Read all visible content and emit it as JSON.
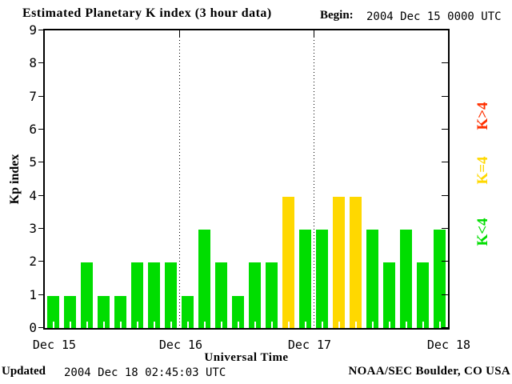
{
  "header": {
    "title": "Estimated Planetary K index (3 hour data)",
    "begin_label": "Begin:",
    "begin_value": "2004 Dec 15 0000 UTC"
  },
  "chart_data": {
    "type": "bar",
    "title": "Estimated Planetary K index (3 hour data)",
    "xlabel": "Universal Time",
    "ylabel": "Kp index",
    "ylim": [
      0,
      9
    ],
    "y_ticks": [
      0,
      1,
      2,
      3,
      4,
      5,
      6,
      7,
      8,
      9
    ],
    "x_tick_labels": [
      "Dec 15",
      "Dec 16",
      "Dec 17",
      "Dec 18"
    ],
    "interval_hours": 3,
    "bars_per_day": 8,
    "values": [
      1,
      1,
      2,
      1,
      1,
      2,
      2,
      2,
      1,
      3,
      2,
      1,
      2,
      2,
      4,
      3,
      3,
      4,
      4,
      3,
      2,
      3,
      2,
      3
    ],
    "colors": {
      "k_below_4": "#00DD00",
      "k_equal_4": "#FFD800",
      "k_above_4": "#FF3000",
      "axis": "#000000",
      "background": "#FFFFFF"
    },
    "legend": [
      {
        "label": "K>4",
        "key": "k_above_4"
      },
      {
        "label": "K=4",
        "key": "k_equal_4"
      },
      {
        "label": "K<4",
        "key": "k_below_4"
      }
    ],
    "grid": "dotted vertical lines at day boundaries",
    "legend_position": "right-rotated"
  },
  "footer": {
    "updated_label": "Updated",
    "updated_value": "2004 Dec 18 02:45:03 UTC",
    "source": "NOAA/SEC Boulder, CO USA"
  }
}
